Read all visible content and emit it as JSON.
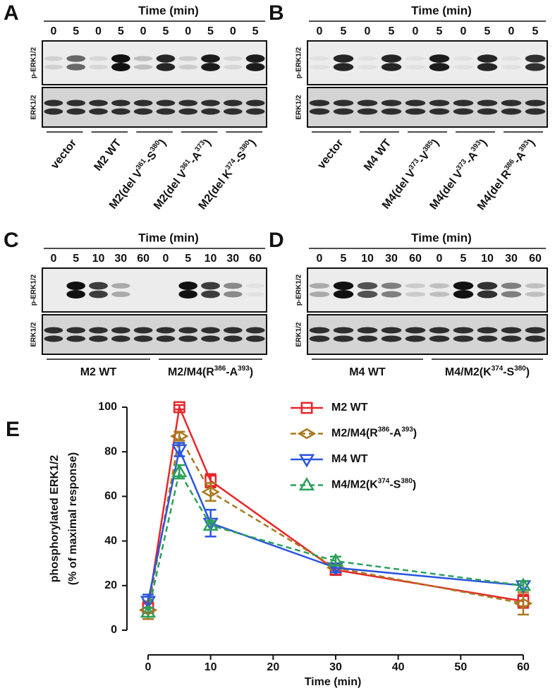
{
  "panels": [
    {
      "label": "A",
      "header": "Time  (min)",
      "times": [
        "0",
        "5",
        "0",
        "5",
        "0",
        "5",
        "0",
        "5",
        "0",
        "5"
      ],
      "rows": [
        "p-ERK1/2",
        "ERK1/2"
      ],
      "groups": [
        [
          "vector"
        ],
        [
          "M2 WT"
        ],
        [
          "M2(del V",
          "361",
          "-S",
          "380",
          ")"
        ],
        [
          "M2(del V",
          "361",
          "-A",
          "373",
          ")"
        ],
        [
          "M2(del K",
          "374",
          "-S",
          "380",
          ")"
        ]
      ]
    },
    {
      "label": "B",
      "header": "Time  (min)",
      "times": [
        "0",
        "5",
        "0",
        "5",
        "0",
        "5",
        "0",
        "5",
        "0",
        "5"
      ],
      "rows": [
        "p-ERK1/2",
        "ERK1/2"
      ],
      "groups": [
        [
          "vector"
        ],
        [
          "M4 WT"
        ],
        [
          "M4(del V",
          "373",
          "-V",
          "385",
          ")"
        ],
        [
          "M4(del V",
          "373",
          "-A",
          "393",
          ")"
        ],
        [
          "M4(del R",
          "386",
          "-A",
          "393",
          ")"
        ]
      ]
    },
    {
      "label": "C",
      "header": "Time  (min)",
      "times": [
        "0",
        "5",
        "10",
        "30",
        "60",
        "0",
        "5",
        "10",
        "30",
        "60"
      ],
      "rows": [
        "p-ERK1/2",
        "ERK1/2"
      ],
      "groups": [
        [
          "M2 WT"
        ],
        [
          "M2/M4(R",
          "386",
          "-A",
          "393",
          ")"
        ]
      ]
    },
    {
      "label": "D",
      "header": "Time  (min)",
      "times": [
        "0",
        "5",
        "10",
        "30",
        "60",
        "0",
        "5",
        "10",
        "30",
        "60"
      ],
      "rows": [
        "p-ERK1/2",
        "ERK1/2"
      ],
      "groups": [
        [
          "M4 WT"
        ],
        [
          "M4/M2(K",
          "374",
          "-S",
          "380",
          ")"
        ]
      ]
    }
  ],
  "chart_data": {
    "type": "line",
    "label": "E",
    "xlabel": "Time (min)",
    "ylabel": [
      "phosphorylated ERK1/2",
      "(% of maximal response)"
    ],
    "x": [
      0,
      5,
      10,
      30,
      60
    ],
    "xlim": [
      0,
      60
    ],
    "xticks": [
      0,
      10,
      20,
      30,
      40,
      50,
      60
    ],
    "ylim": [
      0,
      100
    ],
    "yticks": [
      0,
      20,
      40,
      60,
      80,
      100
    ],
    "series": [
      {
        "name": [
          "M2 WT"
        ],
        "color": "#e8262a",
        "marker": "square",
        "dashed": false,
        "values": [
          10,
          100,
          67,
          27,
          13
        ],
        "errors": [
          2,
          1,
          3,
          2,
          3
        ]
      },
      {
        "name": [
          "M2/M4(R",
          "386",
          "-A",
          "393",
          ")"
        ],
        "color": "#a87a1e",
        "marker": "diamond",
        "dashed": true,
        "values": [
          9,
          87,
          62,
          28,
          12
        ],
        "errors": [
          4,
          2,
          4,
          2,
          5
        ]
      },
      {
        "name": [
          "M4 WT"
        ],
        "color": "#2a55e0",
        "marker": "triangle-down",
        "dashed": false,
        "values": [
          13,
          81,
          48,
          28,
          20
        ],
        "errors": [
          3,
          3,
          6,
          2,
          2
        ]
      },
      {
        "name": [
          "M4/M2(K",
          "374",
          "-S",
          "380",
          ")"
        ],
        "color": "#2ca05a",
        "marker": "triangle-up",
        "dashed": true,
        "values": [
          8,
          71,
          47,
          31,
          20
        ],
        "errors": [
          2,
          3,
          2,
          2,
          2
        ]
      }
    ]
  }
}
